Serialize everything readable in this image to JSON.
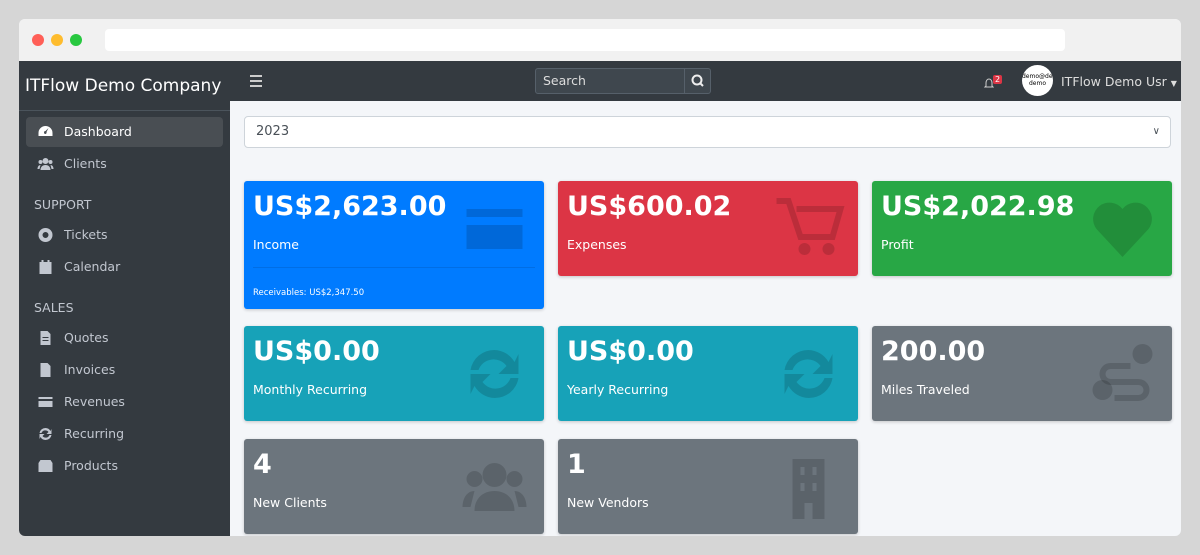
{
  "browser": {
    "dots": [
      "#ff5f57",
      "#febc2e",
      "#28c840"
    ]
  },
  "sidebar": {
    "brand": "ITFlow Demo Company",
    "top": [
      {
        "label": "Dashboard",
        "icon": "tachometer-icon",
        "active": true
      },
      {
        "label": "Clients",
        "icon": "users-icon"
      }
    ],
    "sections": [
      {
        "heading": "SUPPORT",
        "items": [
          {
            "label": "Tickets",
            "icon": "life-ring-icon"
          },
          {
            "label": "Calendar",
            "icon": "calendar-icon"
          }
        ]
      },
      {
        "heading": "SALES",
        "items": [
          {
            "label": "Quotes",
            "icon": "file-icon"
          },
          {
            "label": "Invoices",
            "icon": "invoice-icon"
          },
          {
            "label": "Revenues",
            "icon": "credit-card-icon"
          },
          {
            "label": "Recurring",
            "icon": "sync-icon"
          },
          {
            "label": "Products",
            "icon": "box-icon"
          }
        ]
      }
    ]
  },
  "navbar": {
    "search_placeholder": "Search",
    "notifications": "2",
    "avatar_text": "demo@demo demo",
    "user": "ITFlow Demo Usr"
  },
  "year_select": "2023",
  "cards": [
    {
      "value": "US$2,623.00",
      "label": "Income",
      "footer": "Receivables: US$2,347.50",
      "color": "#007bff",
      "icon": "credit-card-icon"
    },
    {
      "value": "US$600.02",
      "label": "Expenses",
      "color": "#dc3545",
      "icon": "cart-icon"
    },
    {
      "value": "US$2,022.98",
      "label": "Profit",
      "color": "#28a745",
      "icon": "heart-icon"
    },
    {
      "value": "US$0.00",
      "label": "Monthly Recurring",
      "color": "#17a2b8",
      "icon": "sync-icon"
    },
    {
      "value": "US$0.00",
      "label": "Yearly Recurring",
      "color": "#17a2b8",
      "icon": "sync-icon"
    },
    {
      "value": "200.00",
      "label": "Miles Traveled",
      "color": "#6c757d",
      "icon": "route-icon"
    },
    {
      "value": "4",
      "label": "New Clients",
      "color": "#6c757d",
      "icon": "users-icon"
    },
    {
      "value": "1",
      "label": "New Vendors",
      "color": "#6c757d",
      "icon": "building-icon"
    }
  ]
}
